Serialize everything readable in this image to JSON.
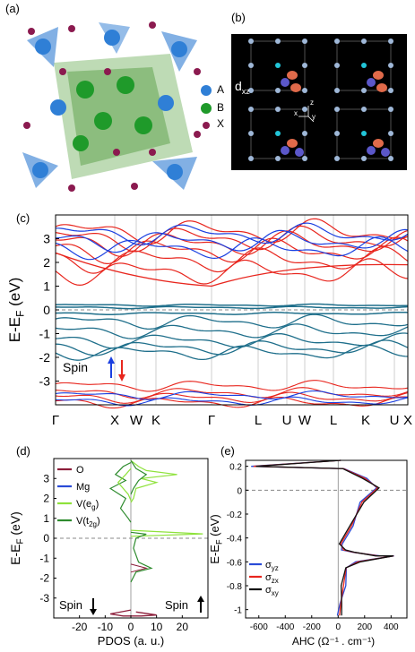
{
  "panels": {
    "a": {
      "label": "(a)",
      "legend": [
        {
          "name": "A",
          "color": "#2f7fd6"
        },
        {
          "name": "B",
          "color": "#1f9a2a"
        },
        {
          "name": "X",
          "color": "#8b1a4f"
        }
      ]
    },
    "b": {
      "label": "(b)",
      "orbital_main": "d",
      "orbital_sub": "xz",
      "axis_x": "x",
      "axis_y": "y",
      "axis_z": "z"
    },
    "c": {
      "label": "(c)"
    },
    "d": {
      "label": "(d)"
    },
    "e": {
      "label": "(e)"
    }
  },
  "chart_data": [
    {
      "panel": "c",
      "type": "line",
      "ylabel_main": "E-E",
      "ylabel_sub": "F",
      "ylabel_unit": " (eV)",
      "ylim": [
        -4,
        4
      ],
      "yticks": [
        "3",
        "2",
        "1",
        "0",
        "-1",
        "-2",
        "-3"
      ],
      "kpath": [
        "Γ",
        "X",
        "W",
        "K",
        "Γ",
        "L",
        "U",
        "W",
        "L",
        "K",
        "U",
        "X"
      ],
      "spin_label": "Spin",
      "colors": {
        "up": "#1a3fe0",
        "down": "#e8261e",
        "flat": "#1f6f8b"
      }
    },
    {
      "panel": "d",
      "type": "line",
      "xlabel": "PDOS (a. u.)",
      "ylabel_main": "E-E",
      "ylabel_sub": "F",
      "ylabel_unit": " (eV)",
      "xticks": [
        "-20",
        "-10",
        "0",
        "10",
        "20"
      ],
      "yticks": [
        "3",
        "2",
        "1",
        "0",
        "-1",
        "-2",
        "-3"
      ],
      "xlim": [
        -30,
        30
      ],
      "ylim": [
        -4,
        4
      ],
      "legend": [
        {
          "name": "O",
          "color": "#8c1d3a"
        },
        {
          "name": "Mg",
          "color": "#2a4bd7"
        },
        {
          "name": "V(e",
          "sub": "g",
          "tail": ")",
          "color": "#8ee23b"
        },
        {
          "name": "V(t",
          "sub": "2g",
          "tail": ")",
          "color": "#2e8b2e"
        }
      ],
      "spin_down_label": "Spin",
      "spin_up_label": "Spin"
    },
    {
      "panel": "e",
      "type": "line",
      "xlabel": "AHC (Ω⁻¹ . cm⁻¹)",
      "ylabel_main": "E-E",
      "ylabel_sub": "F",
      "ylabel_unit": " (eV)",
      "xticks": [
        "-600",
        "-400",
        "-200",
        "0",
        "200",
        "400"
      ],
      "yticks": [
        "0.2",
        "0",
        "-0.2",
        "-0.4",
        "-0.6",
        "-0.8",
        "-1"
      ],
      "xlim": [
        -700,
        520
      ],
      "ylim": [
        -1.07,
        0.25
      ],
      "series": [
        {
          "name": "σ",
          "sub": "yz",
          "color": "#2a4bd7"
        },
        {
          "name": "σ",
          "sub": "zx",
          "color": "#e8261e"
        },
        {
          "name": "σ",
          "sub": "xy",
          "color": "#111111"
        }
      ]
    }
  ]
}
